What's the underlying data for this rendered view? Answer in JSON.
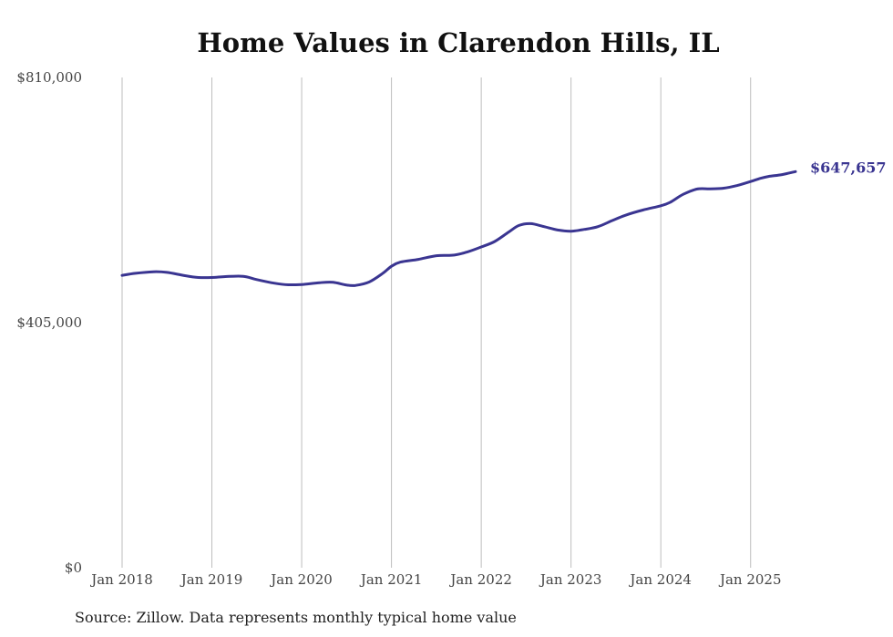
{
  "chart_data": {
    "type": "line",
    "title": "Home Values in Clarendon Hills, IL",
    "xlabel": "",
    "ylabel": "",
    "source": "Source: Zillow. Data represents monthly typical home value",
    "ylim": [
      0,
      810000
    ],
    "y_ticks": [
      {
        "value": 0,
        "label": "$0"
      },
      {
        "value": 405000,
        "label": "$405,000"
      },
      {
        "value": 810000,
        "label": "$810,000"
      }
    ],
    "x_ticks": [
      {
        "value": 2018.0,
        "label": "Jan 2018"
      },
      {
        "value": 2019.0,
        "label": "Jan 2019"
      },
      {
        "value": 2020.0,
        "label": "Jan 2020"
      },
      {
        "value": 2021.0,
        "label": "Jan 2021"
      },
      {
        "value": 2022.0,
        "label": "Jan 2022"
      },
      {
        "value": 2023.0,
        "label": "Jan 2023"
      },
      {
        "value": 2024.0,
        "label": "Jan 2024"
      },
      {
        "value": 2025.0,
        "label": "Jan 2025"
      }
    ],
    "xlim": [
      2018.0,
      2025.5
    ],
    "grid": "vertical",
    "line_color": "#3a3591",
    "end_label": "$647,657",
    "series": [
      {
        "x": [
          2018.0,
          2018.15,
          2018.35,
          2018.5,
          2018.7,
          2018.85,
          2019.0,
          2019.15,
          2019.35,
          2019.5,
          2019.7,
          2019.85,
          2020.0,
          2020.2,
          2020.35,
          2020.5,
          2020.6,
          2020.75,
          2020.9,
          2021.0,
          2021.1,
          2021.3,
          2021.5,
          2021.7,
          2021.85,
          2022.0,
          2022.15,
          2022.3,
          2022.42,
          2022.55,
          2022.7,
          2022.85,
          2023.0,
          2023.15,
          2023.3,
          2023.45,
          2023.6,
          2023.8,
          2024.0,
          2024.1,
          2024.25,
          2024.4,
          2024.55,
          2024.7,
          2024.85,
          2025.0,
          2025.1,
          2025.2,
          2025.35,
          2025.5
        ],
        "values": [
          483000,
          486500,
          489000,
          488000,
          482500,
          479500,
          479500,
          481000,
          481500,
          476000,
          470000,
          467500,
          468000,
          471000,
          471500,
          467000,
          466500,
          472000,
          486000,
          498000,
          505000,
          509500,
          515500,
          516500,
          522000,
          530000,
          539000,
          554000,
          565500,
          568500,
          563500,
          558000,
          556000,
          559000,
          563500,
          573000,
          582000,
          591000,
          598000,
          603500,
          617000,
          625500,
          626000,
          627000,
          631500,
          638000,
          643000,
          646500,
          649500,
          654500
        ]
      }
    ]
  }
}
